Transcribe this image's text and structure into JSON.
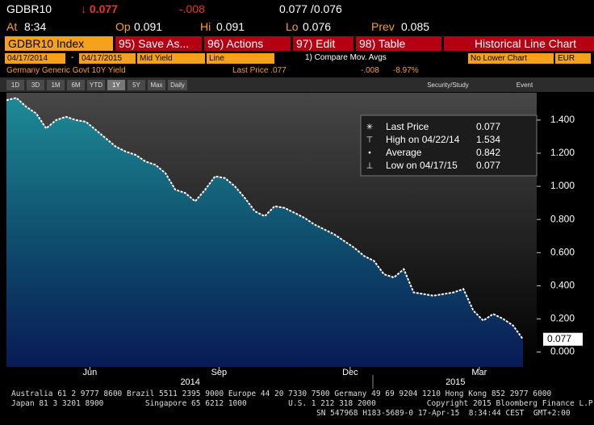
{
  "header": {
    "ticker": "GDBR10",
    "last": "↓ 0.077",
    "change": "-.008",
    "bid_ask": "0.077 /0.076"
  },
  "quote": [
    {
      "label": "At",
      "value": "8:34"
    },
    {
      "label": "Op",
      "value": "0.091"
    },
    {
      "label": "Hi",
      "value": "0.091"
    },
    {
      "label": "Lo",
      "value": "0.076"
    },
    {
      "label": "Prev",
      "value": "0.085"
    }
  ],
  "command_bar": {
    "security": "GDBR10 Index",
    "buttons": [
      "95) Save As...",
      "96) Actions",
      "97) Edit",
      "98) Table"
    ],
    "view": "Historical Line Chart"
  },
  "settings_bar": {
    "start": "04/17/2014",
    "dash": "-",
    "end": "04/17/2015",
    "field": "Mid Yield",
    "style": "Line",
    "compare": "1) Compare Mov. Avgs",
    "lower": "No Lower Chart",
    "currency": "EUR"
  },
  "info_bar": {
    "name": "Germany Generic Govt 10Y Yield",
    "last_price": "Last Price .077",
    "change": "-.008",
    "change_pct": "-8.97%"
  },
  "toolbar": {
    "ranges": [
      "1D",
      "3D",
      "1M",
      "6M",
      "YTD",
      "1Y",
      "5Y",
      "Max"
    ],
    "frequency": "Daily",
    "study": "Security/Study",
    "event": "Event"
  },
  "chart_data": {
    "type": "area",
    "series": [
      {
        "name": "Last Price",
        "color": "#ffffff",
        "values": [
          1.52,
          1.534,
          1.48,
          1.44,
          1.35,
          1.4,
          1.42,
          1.4,
          1.39,
          1.34,
          1.29,
          1.24,
          1.21,
          1.19,
          1.15,
          1.13,
          1.08,
          0.98,
          0.96,
          0.91,
          0.98,
          1.06,
          1.05,
          1.0,
          0.93,
          0.85,
          0.82,
          0.88,
          0.87,
          0.84,
          0.81,
          0.77,
          0.74,
          0.71,
          0.67,
          0.63,
          0.58,
          0.55,
          0.47,
          0.45,
          0.5,
          0.36,
          0.35,
          0.34,
          0.35,
          0.36,
          0.38,
          0.25,
          0.19,
          0.23,
          0.2,
          0.16,
          0.077
        ]
      }
    ],
    "stats": [
      {
        "label": "High on 04/22/14",
        "value": 1.534
      },
      {
        "label": "Average",
        "value": 0.842
      },
      {
        "label": "Low on 04/17/15",
        "value": 0.077
      }
    ],
    "xlim": [
      0,
      52
    ],
    "xticks": [
      {
        "value": 8.4,
        "label": "Jun"
      },
      {
        "value": 21.4,
        "label": "Sep"
      },
      {
        "value": 34.6,
        "label": "Dec"
      },
      {
        "value": 47.6,
        "label": "Mar"
      }
    ],
    "year_ticks": [
      {
        "value": 18.5,
        "label": "2014"
      },
      {
        "value": 45.2,
        "label": "2015"
      }
    ],
    "ylim": [
      -0.09,
      1.565
    ],
    "yticks": [
      {
        "value": 0,
        "label": "0.000"
      },
      {
        "value": 0.2,
        "label": "0.200"
      },
      {
        "value": 0.4,
        "label": "0.400"
      },
      {
        "value": 0.6,
        "label": "0.600"
      },
      {
        "value": 0.8,
        "label": "0.800"
      },
      {
        "value": 1,
        "label": "1.000"
      },
      {
        "value": 1.2,
        "label": "1.200"
      },
      {
        "value": 1.4,
        "label": "1.400"
      }
    ]
  },
  "footer": [
    "Australia 61 2 9777 8600 Brazil 5511 2395 9000 Europe 44 20 7330 7500 Germany 49 69 9204 1210 Hong Kong 852 2977 6000",
    "Japan 81 3 3201 8900         Singapore 65 6212 1000         U.S. 1 212 318 2000           Copyright 2015 Bloomberg Finance L.P.",
    "SN 547968 H183-5689-0 17-Apr-15  8:34:44 CEST  GMT+2:00"
  ]
}
